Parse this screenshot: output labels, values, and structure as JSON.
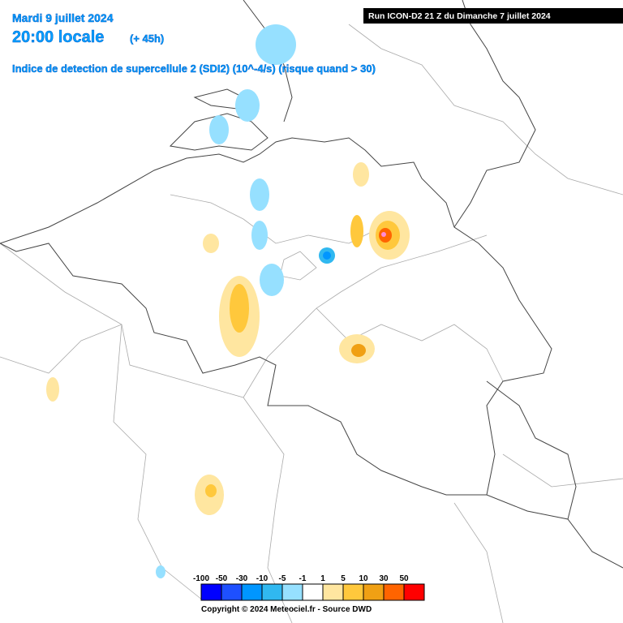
{
  "header": {
    "date": "Mardi 9 juillet 2024",
    "time": "20:00 locale",
    "lead": "(+ 45h)",
    "parameter": "Indice de detection de supercellule 2 (SDI2) (10^-4/s) (risque quand > 30)",
    "run": "Run ICON-D2 21 Z du Dimanche 7 juillet 2024"
  },
  "legend": {
    "labels": [
      "-100",
      "-50",
      "-30",
      "-10",
      "-5",
      "-1",
      "1",
      "5",
      "10",
      "30",
      "50"
    ],
    "colors": [
      "#0000ff",
      "#1e50ff",
      "#0096ff",
      "#30b8f0",
      "#96e0ff",
      "#ffffff",
      "#ffe6a0",
      "#ffc83c",
      "#f0a014",
      "#ff6400",
      "#ff0000"
    ]
  },
  "footer": {
    "copyright": "Copyright © 2024 Meteociel.fr - Source DWD"
  }
}
